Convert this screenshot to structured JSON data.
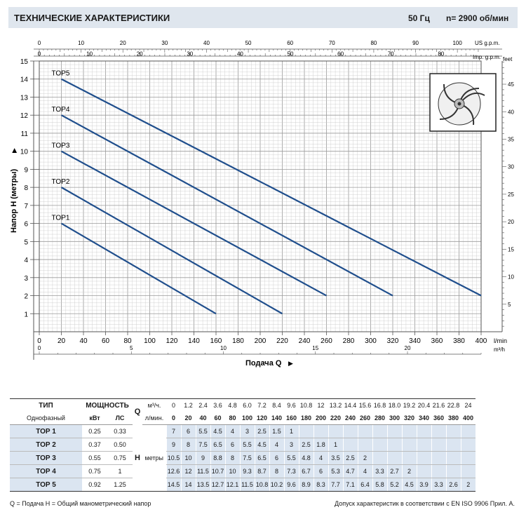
{
  "header": {
    "title": "ТЕХНИЧЕСКИЕ ХАРАКТЕРИСТИКИ",
    "frequency": "50 Гц",
    "speed": "n= 2900 об/мин"
  },
  "chart_data": {
    "type": "line",
    "ylabel": "Напор H (метры)",
    "xlabel": "Подача Q",
    "x_unit": "l/min",
    "x_m3h_unit": "m³/h",
    "us_gpm_label": "US g.p.m.",
    "imp_gpm_label": "Imp. g.p.m.",
    "feet_label": "feet",
    "xlim": [
      0,
      400
    ],
    "ylim": [
      0,
      15
    ],
    "x_ticks": [
      0,
      20,
      40,
      60,
      80,
      100,
      120,
      140,
      160,
      180,
      200,
      220,
      240,
      260,
      280,
      300,
      320,
      340,
      360,
      380,
      400
    ],
    "y_ticks": [
      1,
      2,
      3,
      4,
      5,
      6,
      7,
      8,
      9,
      10,
      11,
      12,
      13,
      14,
      15
    ],
    "us_gpm_ticks": [
      0,
      10,
      20,
      30,
      40,
      50,
      60,
      70,
      80,
      90,
      100
    ],
    "imp_gpm_ticks": [
      0,
      10,
      20,
      30,
      40,
      50,
      60,
      70,
      80
    ],
    "feet_ticks": [
      5,
      10,
      15,
      20,
      25,
      30,
      35,
      40,
      45
    ],
    "m3h_ticks": [
      0,
      5,
      10,
      15,
      20
    ],
    "series": [
      {
        "name": "TOP1",
        "x": [
          20,
          160
        ],
        "y": [
          6,
          1
        ]
      },
      {
        "name": "TOP2",
        "x": [
          20,
          220
        ],
        "y": [
          8,
          1
        ]
      },
      {
        "name": "TOP3",
        "x": [
          20,
          260
        ],
        "y": [
          10,
          2
        ]
      },
      {
        "name": "TOP4",
        "x": [
          20,
          320
        ],
        "y": [
          12,
          2
        ]
      },
      {
        "name": "TOP5",
        "x": [
          20,
          400
        ],
        "y": [
          14,
          2
        ]
      }
    ]
  },
  "table": {
    "h_type": "ТИП",
    "h_power": "МОЩНОСТЬ",
    "q_symbol": "Q",
    "q_m3h_label": "м³/ч.",
    "q_lmin_label": "л/мин.",
    "phase_label": "Однофазный",
    "kw_label": "кВт",
    "hp_label": "ЛС",
    "h_symbol": "H",
    "h_unit": "метры",
    "q_m3h": [
      "0",
      "1.2",
      "2.4",
      "3.6",
      "4.8",
      "6.0",
      "7.2",
      "8.4",
      "9.6",
      "10.8",
      "12",
      "13.2",
      "14.4",
      "15.6",
      "16.8",
      "18.0",
      "19.2",
      "20.4",
      "21.6",
      "22.8",
      "24"
    ],
    "q_lmin": [
      "0",
      "20",
      "40",
      "60",
      "80",
      "100",
      "120",
      "140",
      "160",
      "180",
      "200",
      "220",
      "240",
      "260",
      "280",
      "300",
      "320",
      "340",
      "360",
      "380",
      "400"
    ],
    "models": [
      {
        "name": "TOP 1",
        "kw": "0.25",
        "hp": "0.33",
        "h": [
          "7",
          "6",
          "5.5",
          "4.5",
          "4",
          "3",
          "2.5",
          "1.5",
          "1"
        ]
      },
      {
        "name": "TOP 2",
        "kw": "0.37",
        "hp": "0.50",
        "h": [
          "9",
          "8",
          "7.5",
          "6.5",
          "6",
          "5.5",
          "4.5",
          "4",
          "3",
          "2.5",
          "1.8",
          "1"
        ]
      },
      {
        "name": "TOP 3",
        "kw": "0.55",
        "hp": "0.75",
        "h": [
          "10.5",
          "10",
          "9",
          "8.8",
          "8",
          "7.5",
          "6.5",
          "6",
          "5.5",
          "4.8",
          "4",
          "3.5",
          "2.5",
          "2"
        ]
      },
      {
        "name": "TOP 4",
        "kw": "0.75",
        "hp": "1",
        "h": [
          "12.6",
          "12",
          "11.5",
          "10.7",
          "10",
          "9.3",
          "8.7",
          "8",
          "7.3",
          "6.7",
          "6",
          "5.3",
          "4.7",
          "4",
          "3.3",
          "2.7",
          "2"
        ]
      },
      {
        "name": "TOP 5",
        "kw": "0.92",
        "hp": "1.25",
        "h": [
          "14.5",
          "14",
          "13.5",
          "12.7",
          "12.1",
          "11.5",
          "10.8",
          "10.2",
          "9.6",
          "8.9",
          "8.3",
          "7.7",
          "7.1",
          "6.4",
          "5.8",
          "5.2",
          "4.5",
          "3.9",
          "3.3",
          "2.6",
          "2"
        ]
      }
    ]
  },
  "footer": {
    "legend": "Q = Подача   H = Общий манометрический напор",
    "tolerance": "Допуск характеристик в соответствии с EN ISO 9906 Прил. A."
  },
  "colors": {
    "line": "#1f4e8c",
    "header_bg": "#dfe6ee",
    "row_alt": "#dbe5f1",
    "grid": "#c8c8c8"
  }
}
